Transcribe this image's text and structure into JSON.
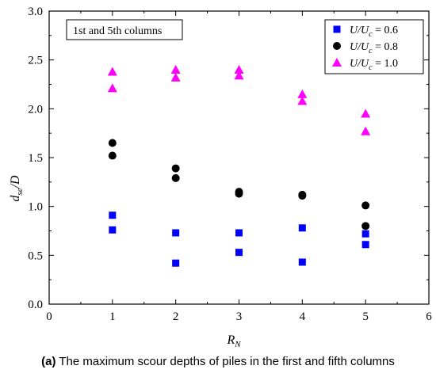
{
  "caption": {
    "label": "(a)",
    "text": "The maximum scour depths of piles in the first and fifth columns"
  },
  "chart_data": {
    "type": "scatter",
    "title": "",
    "xlabel_main": "R",
    "xlabel_sub": "N",
    "ylabel_main": "d",
    "ylabel_sub": "se",
    "ylabel_tail": "/D",
    "xlim": [
      0,
      6
    ],
    "ylim": [
      0.0,
      3.0
    ],
    "xticks": [
      0,
      1,
      2,
      3,
      4,
      5,
      6
    ],
    "xtick_labels": [
      "0",
      "1",
      "2",
      "3",
      "4",
      "5",
      "6"
    ],
    "yticks": [
      0.0,
      0.5,
      1.0,
      1.5,
      2.0,
      2.5,
      3.0
    ],
    "ytick_labels": [
      "0.0",
      "0.5",
      "1.0",
      "1.5",
      "2.0",
      "2.5",
      "3.0"
    ],
    "grid": false,
    "annotation": "1st and 5th columns",
    "legend_position": "top-right",
    "series": [
      {
        "name": "U/U_c = 0.6",
        "legend_ratio": "U/U",
        "legend_sub": "c",
        "legend_value": " = 0.6",
        "marker": "square",
        "color": "#0000ff",
        "points": [
          [
            1,
            0.91
          ],
          [
            1,
            0.76
          ],
          [
            2,
            0.73
          ],
          [
            2,
            0.42
          ],
          [
            3,
            0.73
          ],
          [
            3,
            0.53
          ],
          [
            4,
            0.78
          ],
          [
            4,
            0.43
          ],
          [
            5,
            0.72
          ],
          [
            5,
            0.61
          ]
        ]
      },
      {
        "name": "U/U_c = 0.8",
        "legend_ratio": "U/U",
        "legend_sub": "c",
        "legend_value": " = 0.8",
        "marker": "circle",
        "color": "#000000",
        "points": [
          [
            1,
            1.65
          ],
          [
            1,
            1.52
          ],
          [
            2,
            1.39
          ],
          [
            2,
            1.29
          ],
          [
            3,
            1.15
          ],
          [
            3,
            1.13
          ],
          [
            4,
            1.12
          ],
          [
            4,
            1.11
          ],
          [
            5,
            1.01
          ],
          [
            5,
            0.8
          ]
        ]
      },
      {
        "name": "U/U_c = 1.0",
        "legend_ratio": "U/U",
        "legend_sub": "c",
        "legend_value": " = 1.0",
        "marker": "triangle",
        "color": "#ff00ff",
        "points": [
          [
            1,
            2.38
          ],
          [
            1,
            2.21
          ],
          [
            2,
            2.4
          ],
          [
            2,
            2.32
          ],
          [
            3,
            2.4
          ],
          [
            3,
            2.34
          ],
          [
            4,
            2.15
          ],
          [
            4,
            2.08
          ],
          [
            5,
            1.95
          ],
          [
            5,
            1.77
          ]
        ]
      }
    ]
  }
}
